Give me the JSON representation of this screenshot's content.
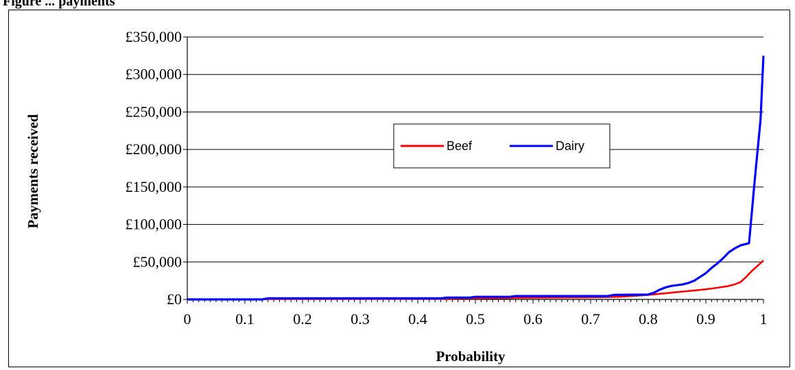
{
  "caption": "Figure ... payments",
  "chart_data": {
    "type": "line",
    "title": "",
    "xlabel": "Probability",
    "ylabel": "Payments received",
    "xlim": [
      0,
      1
    ],
    "ylim": [
      0,
      350000
    ],
    "x_ticks": [
      0,
      0.1,
      0.2,
      0.3,
      0.4,
      0.5,
      0.6,
      0.7,
      0.8,
      0.9,
      1
    ],
    "x_tick_labels": [
      "0",
      "0.1",
      "0.2",
      "0.3",
      "0.4",
      "0.5",
      "0.6",
      "0.7",
      "0.8",
      "0.9",
      "1"
    ],
    "y_ticks": [
      0,
      50000,
      100000,
      150000,
      200000,
      250000,
      300000,
      350000
    ],
    "y_tick_labels": [
      "£0",
      "£50,000",
      "£100,000",
      "£150,000",
      "£200,000",
      "£250,000",
      "£300,000",
      "£350,000"
    ],
    "grid": "horizontal",
    "legend_position": "center",
    "series": [
      {
        "name": "Beef",
        "color": "#ff0000",
        "x": [
          0,
          0.13,
          0.14,
          0.44,
          0.45,
          0.5,
          0.56,
          0.57,
          0.7,
          0.75,
          0.8,
          0.82,
          0.84,
          0.86,
          0.88,
          0.9,
          0.92,
          0.94,
          0.95,
          0.96,
          0.97,
          0.98,
          0.99,
          1.0
        ],
        "y": [
          0,
          0,
          500,
          800,
          1200,
          1500,
          1800,
          2200,
          2800,
          3500,
          6000,
          7500,
          9000,
          10500,
          12000,
          13500,
          15500,
          18000,
          20000,
          23000,
          30000,
          38000,
          45000,
          52000
        ]
      },
      {
        "name": "Dairy",
        "color": "#0000ff",
        "x": [
          0,
          0.13,
          0.14,
          0.44,
          0.45,
          0.49,
          0.5,
          0.56,
          0.57,
          0.73,
          0.74,
          0.8,
          0.81,
          0.82,
          0.83,
          0.84,
          0.85,
          0.86,
          0.87,
          0.88,
          0.89,
          0.9,
          0.91,
          0.92,
          0.93,
          0.94,
          0.95,
          0.96,
          0.975,
          0.985,
          0.995,
          1.0
        ],
        "y": [
          0,
          0,
          1500,
          1500,
          2500,
          2500,
          3500,
          3500,
          4500,
          4500,
          6000,
          6500,
          9000,
          13000,
          16000,
          18000,
          19000,
          20000,
          22000,
          25000,
          30000,
          35000,
          42000,
          48000,
          55000,
          63000,
          68000,
          72000,
          75000,
          160000,
          240000,
          325000
        ]
      }
    ]
  }
}
